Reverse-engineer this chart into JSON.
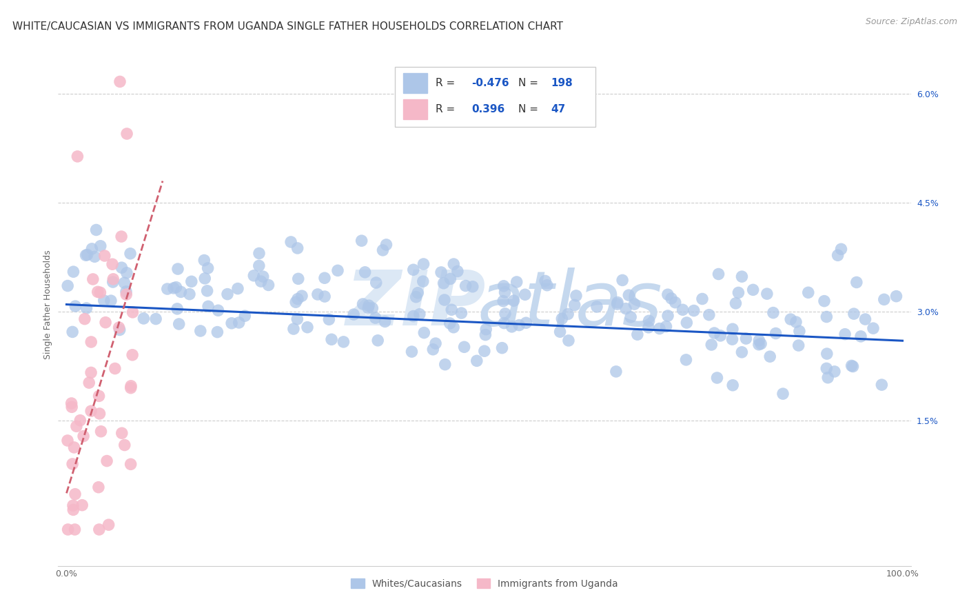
{
  "title": "WHITE/CAUCASIAN VS IMMIGRANTS FROM UGANDA SINGLE FATHER HOUSEHOLDS CORRELATION CHART",
  "source": "Source: ZipAtlas.com",
  "ylabel_label": "Single Father Households",
  "ylabel_ticks": [
    "1.5%",
    "3.0%",
    "4.5%",
    "6.0%"
  ],
  "ylabel_values": [
    0.015,
    0.03,
    0.045,
    0.06
  ],
  "xlim": [
    -0.01,
    1.01
  ],
  "ylim": [
    -0.005,
    0.067
  ],
  "legend_label1": "Whites/Caucasians",
  "legend_label2": "Immigrants from Uganda",
  "blue_R": -0.476,
  "blue_N": 198,
  "pink_R": 0.396,
  "pink_N": 47,
  "blue_color": "#adc6e8",
  "pink_color": "#f5b8c8",
  "blue_line_color": "#1a56c4",
  "pink_line_color": "#d06070",
  "blue_line_start_y": 0.031,
  "blue_line_end_y": 0.026,
  "pink_line_start_y": 0.005,
  "pink_line_end_y": 0.048,
  "pink_line_end_x": 0.115,
  "title_fontsize": 11,
  "source_fontsize": 9,
  "axis_label_fontsize": 9,
  "tick_fontsize": 9,
  "watermark_zip_color": "#dce8f5",
  "watermark_atlas_color": "#c5d8ee"
}
